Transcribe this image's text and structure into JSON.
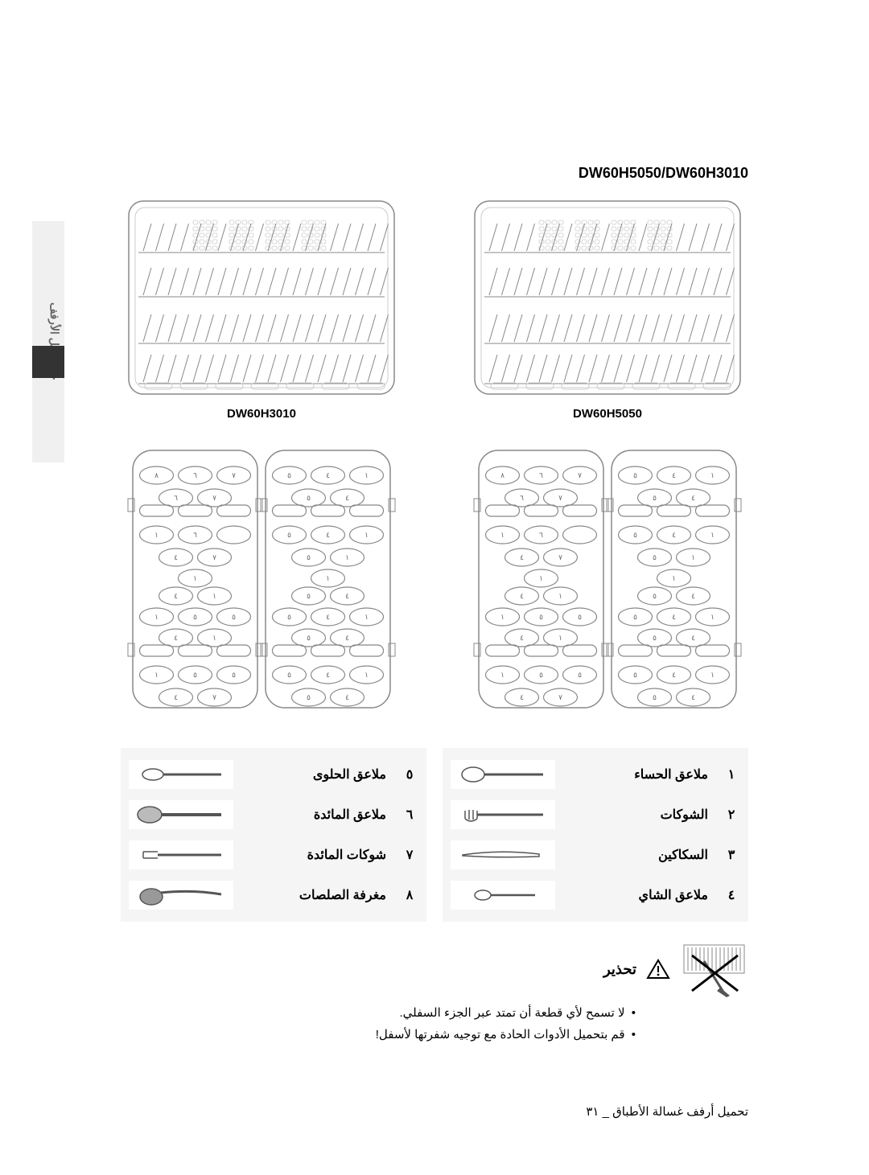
{
  "sideTab": "٤٠  تحميل الأرفف",
  "modelHeader": "DW60H5050/DW60H3010",
  "racks": {
    "left": {
      "label": "DW60H3010"
    },
    "right": {
      "label": "DW60H5050"
    }
  },
  "trayNumbers": {
    "leftHalf": [
      [
        "٨",
        "٦",
        "٧"
      ],
      [
        "٦",
        "٧"
      ],
      [
        "١",
        "٦"
      ],
      [
        "٤",
        "٧"
      ],
      [
        "١"
      ],
      [
        "٤",
        "١"
      ],
      [
        "١",
        "٥",
        "٥"
      ],
      [
        "٤",
        "١"
      ],
      [
        "١",
        "٥",
        "٥"
      ],
      [
        "٤",
        "٧"
      ]
    ],
    "rightHalf": [
      [
        "٥",
        "٤",
        "١"
      ],
      [
        "٥",
        "٤"
      ],
      [
        "٥",
        "٤",
        "١"
      ],
      [
        "٥",
        "١",
        "٤"
      ],
      [
        "١"
      ],
      [
        "٥",
        "٤"
      ],
      [
        "٥",
        "٤",
        "١"
      ],
      [
        "٥",
        "٤"
      ],
      [
        "٥",
        "٤",
        "١"
      ],
      [
        "٥",
        "٤"
      ]
    ]
  },
  "legendRight": [
    {
      "num": "١",
      "label": "ملاعق الحساء",
      "icon": "soup-spoon"
    },
    {
      "num": "٢",
      "label": "الشوكات",
      "icon": "fork"
    },
    {
      "num": "٣",
      "label": "السكاكين",
      "icon": "knife"
    },
    {
      "num": "٤",
      "label": "ملاعق الشاي",
      "icon": "teaspoon"
    }
  ],
  "legendLeft": [
    {
      "num": "٥",
      "label": "ملاعق الحلوى",
      "icon": "dessert-spoon"
    },
    {
      "num": "٦",
      "label": "ملاعق المائدة",
      "icon": "table-spoon"
    },
    {
      "num": "٧",
      "label": "شوكات المائدة",
      "icon": "serving-fork"
    },
    {
      "num": "٨",
      "label": "مغرفة الصلصات",
      "icon": "ladle"
    }
  ],
  "warning": {
    "title": "تحذير",
    "items": [
      "لا تسمح لأي قطعة أن تمتد عبر الجزء السفلي.",
      "قم بتحميل الأدوات الحادة مع توجيه شفرتها لأسفل!"
    ]
  },
  "footer": "تحميل أرفف غسالة الأطباق _ ٣١",
  "colors": {
    "line": "#888888",
    "light": "#cccccc",
    "bg": "#ffffff"
  }
}
